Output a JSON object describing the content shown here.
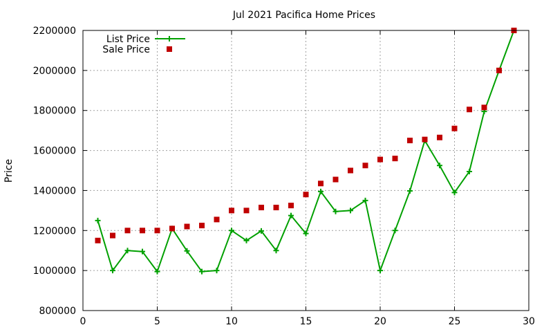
{
  "chart_data": {
    "type": "line",
    "title": "Jul 2021 Pacifica Home Prices",
    "xlabel": "",
    "ylabel": "Price",
    "xlim": [
      0,
      30
    ],
    "ylim": [
      800000,
      2200000
    ],
    "x_ticks": [
      0,
      5,
      10,
      15,
      20,
      25,
      30
    ],
    "y_ticks": [
      800000,
      1000000,
      1200000,
      1400000,
      1600000,
      1800000,
      2000000,
      2200000
    ],
    "grid": true,
    "legend_position": "top-left",
    "series": [
      {
        "name": "List Price",
        "style": "line with plus markers",
        "color": "#00a000",
        "x": [
          1,
          2,
          3,
          4,
          5,
          6,
          7,
          8,
          9,
          10,
          11,
          12,
          13,
          14,
          15,
          16,
          17,
          18,
          19,
          20,
          21,
          22,
          23,
          24,
          25,
          26,
          27,
          28,
          29
        ],
        "y": [
          1250000,
          1000000,
          1100000,
          1095000,
          995000,
          1210000,
          1098000,
          995000,
          1000000,
          1200000,
          1150000,
          1198000,
          1100000,
          1275000,
          1185000,
          1395000,
          1295000,
          1300000,
          1350000,
          1000000,
          1200000,
          1398000,
          1650000,
          1525000,
          1390000,
          1495000,
          1795000,
          2000000,
          2200000
        ]
      },
      {
        "name": "Sale Price",
        "style": "square markers",
        "color": "#c00000",
        "x": [
          1,
          2,
          3,
          4,
          5,
          6,
          7,
          8,
          9,
          10,
          11,
          12,
          13,
          14,
          15,
          16,
          17,
          18,
          19,
          20,
          21,
          22,
          23,
          24,
          25,
          26,
          27,
          28,
          29
        ],
        "y": [
          1150000,
          1175000,
          1200000,
          1200000,
          1200000,
          1210000,
          1220000,
          1225000,
          1255000,
          1300000,
          1300000,
          1315000,
          1315000,
          1325000,
          1380000,
          1435000,
          1455000,
          1500000,
          1525000,
          1555000,
          1560000,
          1650000,
          1655000,
          1665000,
          1710000,
          1805000,
          1815000,
          2000000,
          2200000
        ]
      }
    ]
  }
}
